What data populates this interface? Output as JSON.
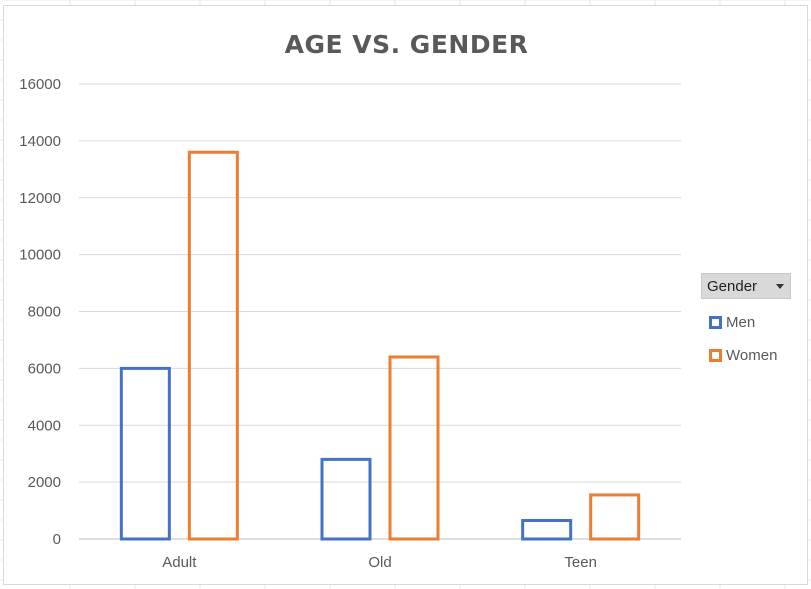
{
  "chart_data": {
    "type": "bar",
    "title": "AGE VS. GENDER",
    "categories": [
      "Adult",
      "Old",
      "Teen"
    ],
    "series": [
      {
        "name": "Men",
        "values": [
          6000,
          2800,
          650
        ],
        "color": "#4472c4"
      },
      {
        "name": "Women",
        "values": [
          13600,
          6400,
          1550
        ],
        "color": "#ed7d31"
      }
    ],
    "yticks": [
      0,
      2000,
      4000,
      6000,
      8000,
      10000,
      12000,
      14000,
      16000
    ],
    "ylim": [
      0,
      16000
    ],
    "grid": true,
    "legend_placement": "right",
    "bar_style": "outline"
  },
  "legend": {
    "header_label": "Gender",
    "dropdown_icon": "chevron-down-icon"
  }
}
